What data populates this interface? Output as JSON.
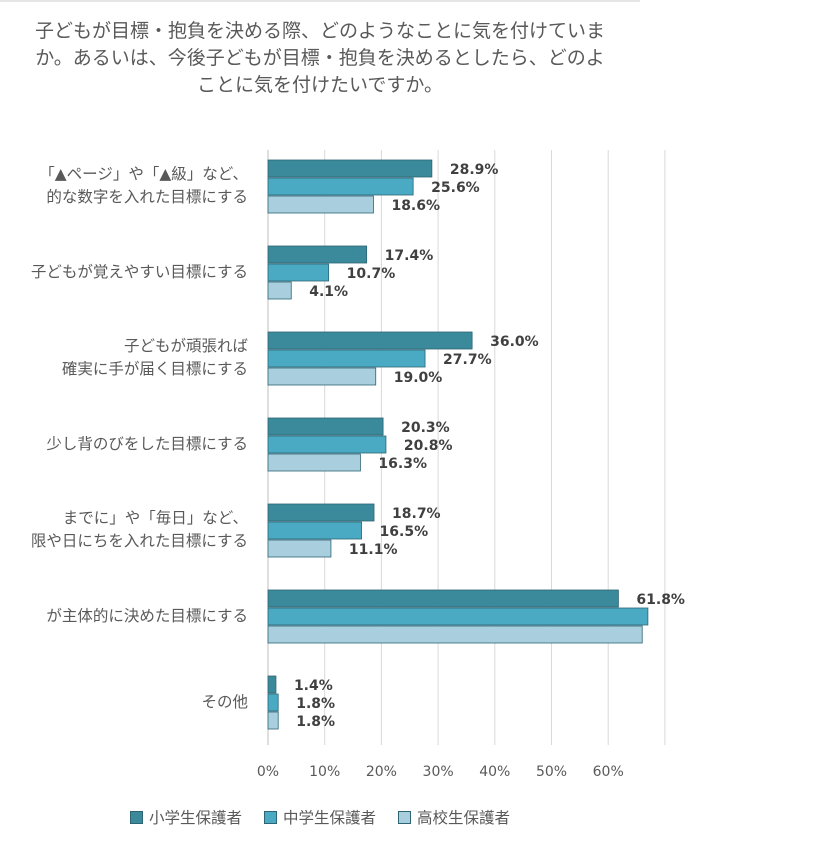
{
  "title_lines": [
    "子どもが目標・抱負を決める際、どのようなことに気を付けていま",
    "か。あるいは、今後子どもが目標・抱負を決めるとしたら、どのよ",
    "ことに気を付けたいですか。"
  ],
  "chart_data": {
    "type": "bar",
    "orientation": "horizontal",
    "categories": [
      [
        "「▲ページ」や「▲級」など、",
        "的な数字を入れた目標にする"
      ],
      [
        "子どもが覚えやすい目標にする"
      ],
      [
        "子どもが頑張れば",
        "確実に手が届く目標にする"
      ],
      [
        "少し背のびをした目標にする"
      ],
      [
        "までに」や「毎日」など、",
        "限や日にちを入れた目標にする"
      ],
      [
        "が主体的に決めた目標にする"
      ],
      [
        "その他"
      ]
    ],
    "series": [
      {
        "name": "小学生保護者",
        "color": "#3b8a9c",
        "values": [
          28.9,
          17.4,
          36.0,
          20.3,
          18.7,
          61.8,
          1.4
        ],
        "labels": [
          "28.9%",
          "17.4%",
          "36.0%",
          "20.3%",
          "18.7%",
          "61.8%",
          "1.4%"
        ]
      },
      {
        "name": "中学生保護者",
        "color": "#4aa9c3",
        "values": [
          25.6,
          10.7,
          27.7,
          20.8,
          16.5,
          67.0,
          1.8
        ],
        "labels": [
          "25.6%",
          "10.7%",
          "27.7%",
          "20.8%",
          "16.5%",
          "",
          "1.8%"
        ]
      },
      {
        "name": "高校生保護者",
        "color": "#a9cfdf",
        "values": [
          18.6,
          4.1,
          19.0,
          16.3,
          11.1,
          66.0,
          1.8
        ],
        "labels": [
          "18.6%",
          "4.1%",
          "19.0%",
          "16.3%",
          "11.1%",
          "",
          "1.8%"
        ]
      }
    ],
    "xticks": [
      "0%",
      "10%",
      "20%",
      "30%",
      "40%",
      "50%",
      "60%"
    ],
    "xlim": [
      0,
      70
    ],
    "grid": true,
    "legend_position": "bottom"
  }
}
